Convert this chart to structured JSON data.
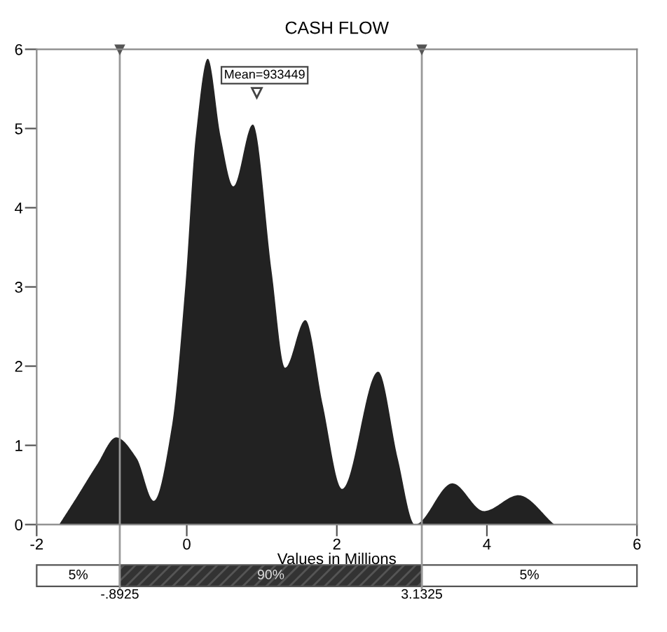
{
  "chart_data": {
    "type": "area",
    "title": "CASH FLOW",
    "xlabel": "Values in Millions",
    "x": [
      -1.7,
      -1.47,
      -1.2,
      -0.94,
      -0.67,
      -0.44,
      -0.2,
      -0.02,
      0.12,
      0.28,
      0.45,
      0.62,
      0.88,
      1.13,
      1.31,
      1.58,
      1.81,
      2.07,
      2.55,
      2.81,
      3.04,
      3.54,
      3.96,
      4.42,
      4.9
    ],
    "series": [
      {
        "color": "#222222",
        "values": [
          0,
          0.34,
          0.75,
          1.1,
          0.84,
          0.3,
          1.23,
          3.0,
          4.9,
          5.88,
          4.9,
          4.27,
          5.05,
          3.2,
          1.98,
          2.58,
          1.52,
          0.45,
          1.93,
          0.84,
          0,
          0.52,
          0.17,
          0.37,
          0
        ]
      }
    ],
    "xlim": [
      -2,
      6
    ],
    "ylim": [
      0,
      6
    ],
    "xticks": [
      -2,
      0,
      2,
      4,
      6
    ],
    "yticks": [
      0,
      1,
      2,
      3,
      4,
      5,
      6
    ],
    "grid": false,
    "legend": false,
    "ref_lines": [
      {
        "axis": "x",
        "value": -0.8925,
        "label": "-.8925",
        "color": "#999999"
      },
      {
        "axis": "x",
        "value": 3.1325,
        "label": "3.1325",
        "color": "#999999"
      }
    ],
    "annotations": [
      {
        "text": "Mean=933449",
        "x": 0.933449,
        "y": 5.45
      },
      "5%",
      "90%",
      "5%"
    ]
  }
}
